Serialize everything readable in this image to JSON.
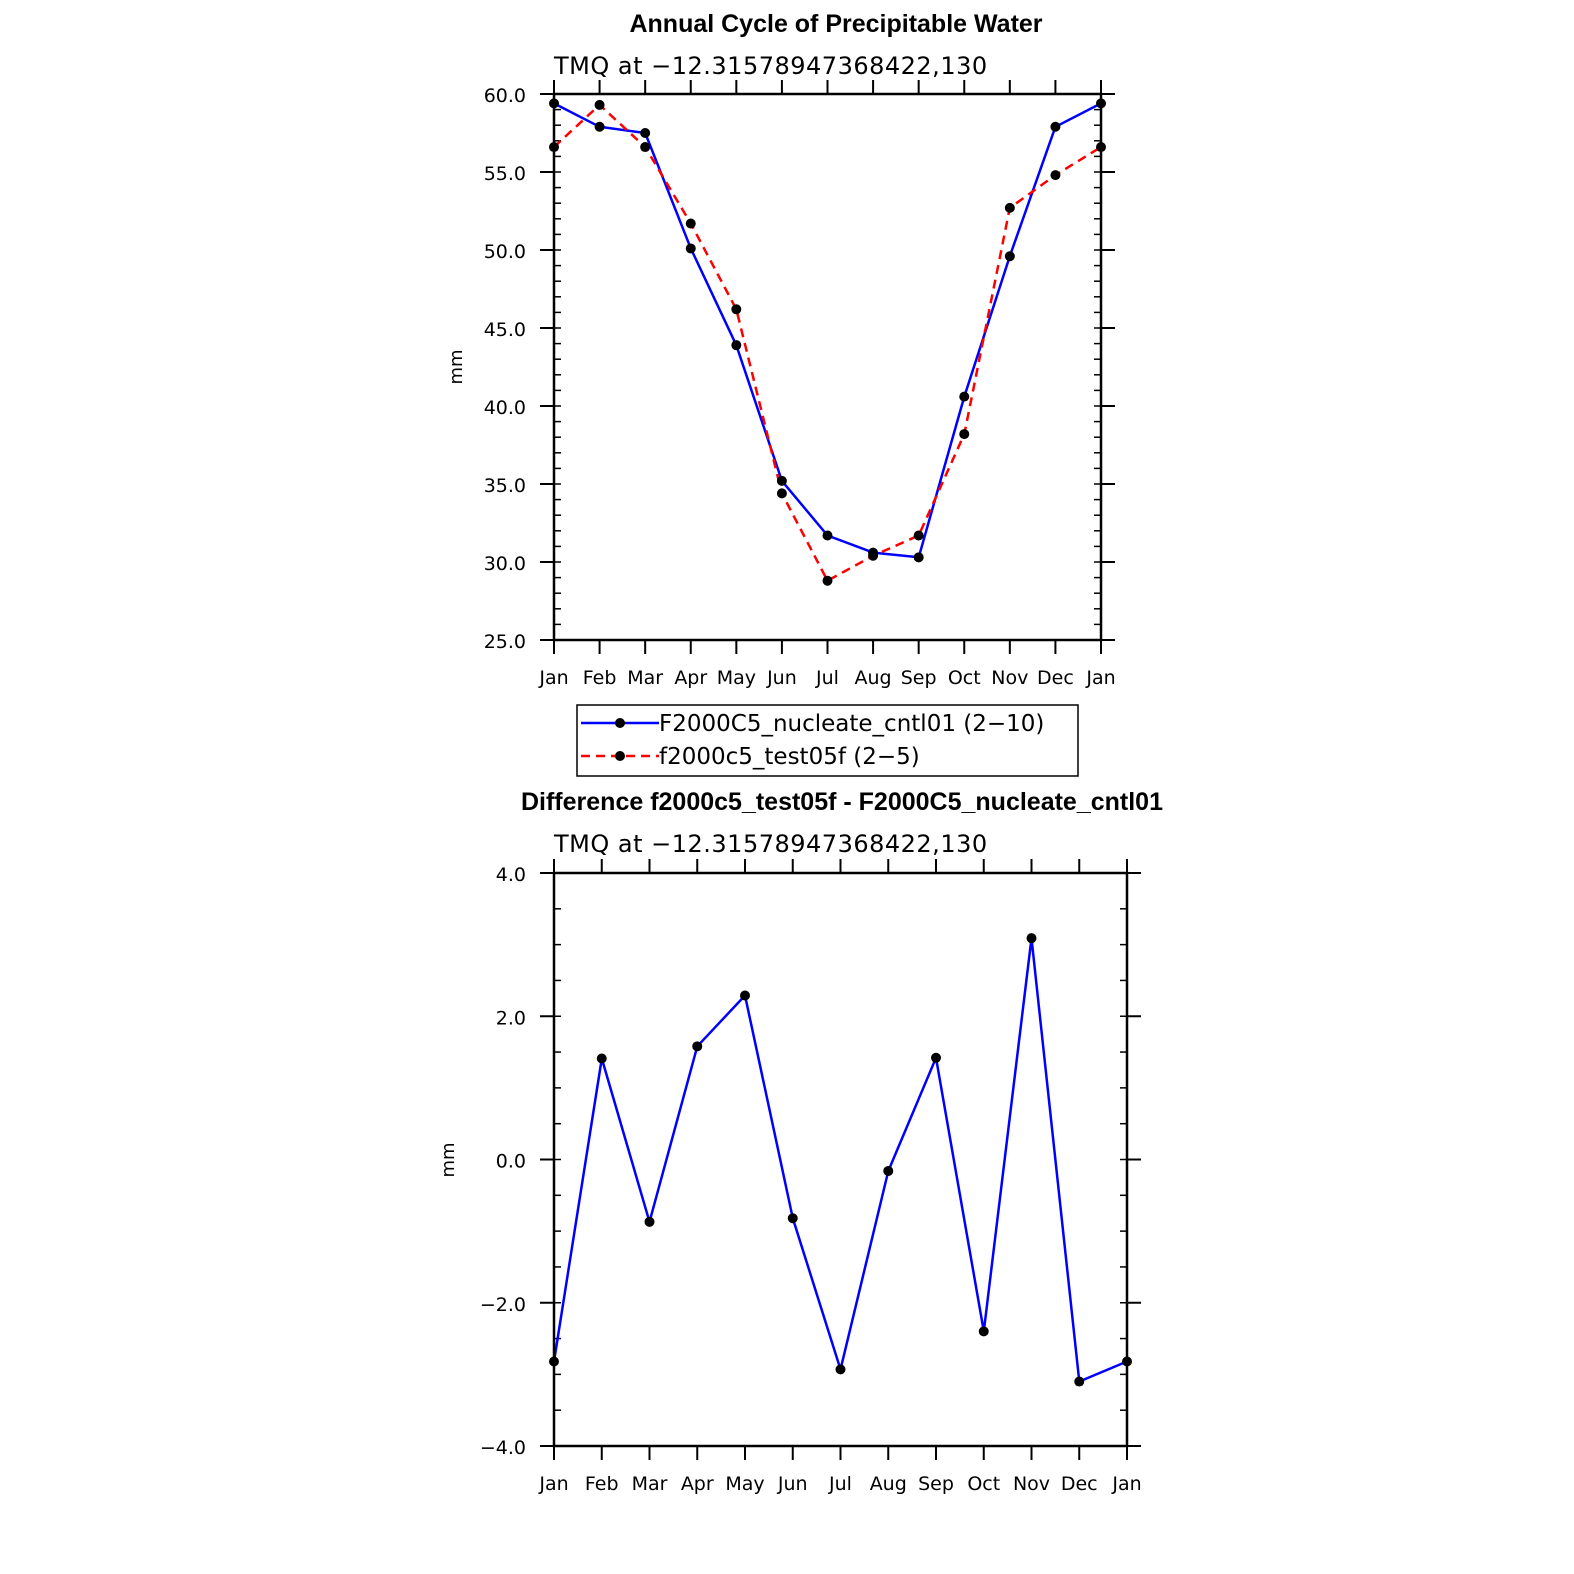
{
  "chart_data": [
    {
      "type": "line",
      "title": "Annual Cycle of Precipitable Water",
      "subtitle": "TMQ at −12.315789473684,130",
      "subtitle_full": "TMQ at −12.31578947368422,130",
      "ylabel": "mm",
      "ylim": [
        25,
        60
      ],
      "yticks": [
        "25.0",
        "30.0",
        "35.0",
        "40.0",
        "45.0",
        "50.0",
        "55.0",
        "60.0"
      ],
      "categories": [
        "Jan",
        "Feb",
        "Mar",
        "Apr",
        "May",
        "Jun",
        "Jul",
        "Aug",
        "Sep",
        "Oct",
        "Nov",
        "Dec",
        "Jan"
      ],
      "series": [
        {
          "name": "F2000C5_nucleate_cntl01 (2−10)",
          "color": "#0000ff",
          "dash": "solid",
          "values": [
            59.4,
            57.9,
            57.5,
            50.1,
            43.9,
            35.2,
            31.7,
            30.6,
            30.3,
            40.6,
            49.6,
            57.9,
            59.4
          ]
        },
        {
          "name": "f2000c5_test05f (2−5)",
          "color": "#ff0000",
          "dash": "dashed",
          "values": [
            56.6,
            59.3,
            56.6,
            51.7,
            46.2,
            34.4,
            28.8,
            30.4,
            31.7,
            38.2,
            52.7,
            54.8,
            56.6
          ]
        }
      ],
      "legend_position": "bottom"
    },
    {
      "type": "line",
      "title": "Difference f2000c5_test05f - F2000C5_nucleate_cntl01",
      "subtitle": "TMQ at −12.31578947368422,130",
      "ylabel": "mm",
      "ylim": [
        -4,
        4
      ],
      "yticks": [
        "−4.0",
        "−2.0",
        "0.0",
        "2.0",
        "4.0"
      ],
      "categories": [
        "Jan",
        "Feb",
        "Mar",
        "Apr",
        "May",
        "Jun",
        "Jul",
        "Aug",
        "Sep",
        "Oct",
        "Nov",
        "Dec",
        "Jan"
      ],
      "series": [
        {
          "color": "#0000ff",
          "dash": "solid",
          "values": [
            -2.82,
            1.41,
            -0.87,
            1.58,
            2.29,
            -0.82,
            -2.93,
            -0.16,
            1.42,
            -2.4,
            3.09,
            -3.1,
            -2.82
          ]
        }
      ]
    }
  ]
}
